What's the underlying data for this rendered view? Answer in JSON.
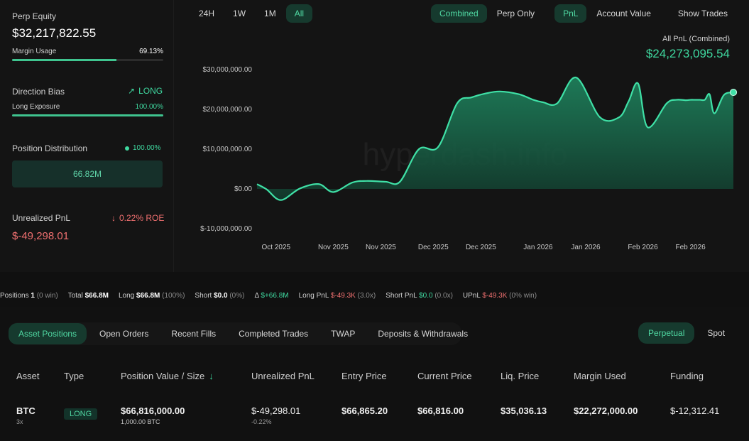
{
  "summary": {
    "perp_equity_label": "Perp Equity",
    "perp_equity_value": "$32,217,822.55",
    "margin_usage_label": "Margin Usage",
    "margin_usage_value": "69.13%",
    "margin_usage_fraction": 0.6913,
    "direction_bias_label": "Direction Bias",
    "direction_bias_value": "LONG",
    "long_exposure_label": "Long Exposure",
    "long_exposure_value": "100.00%",
    "long_exposure_fraction": 1.0,
    "position_distribution_label": "Position Distribution",
    "position_distribution_value": "100.00%",
    "position_distribution_box": "66.82M",
    "unrealized_pnl_label": "Unrealized PnL",
    "unrealized_roe": "0.22% ROE",
    "unrealized_pnl_value": "$-49,298.01"
  },
  "chart_controls": {
    "ranges": [
      "24H",
      "1W",
      "1M",
      "All"
    ],
    "active_range": "All",
    "modes": [
      "Combined",
      "Perp Only",
      "PnL",
      "Account Value",
      "Show Trades"
    ],
    "active_modes": [
      "Combined",
      "PnL"
    ]
  },
  "chart_header": {
    "caption": "All PnL (Combined)",
    "value": "$24,273,095.54",
    "watermark": "hyperdash.info"
  },
  "chart_data": {
    "type": "area",
    "y_ticks": [
      "$30,000,000.00",
      "$20,000,000.00",
      "$10,000,000.00",
      "$0.00",
      "$-10,000,000.00"
    ],
    "x_ticks": [
      "Oct 2025",
      "Nov 2025",
      "Nov 2025",
      "Dec 2025",
      "Dec 2025",
      "Jan 2026",
      "Jan 2026",
      "Feb 2026",
      "Feb 2026"
    ],
    "ylim": [
      -10000000,
      30000000
    ],
    "x": [
      0,
      0.02,
      0.05,
      0.09,
      0.13,
      0.16,
      0.2,
      0.23,
      0.27,
      0.3,
      0.34,
      0.38,
      0.42,
      0.45,
      0.48,
      0.51,
      0.55,
      0.58,
      0.6,
      0.63,
      0.67,
      0.72,
      0.76,
      0.78,
      0.8,
      0.82,
      0.86,
      0.88,
      0.9,
      0.91,
      0.92,
      0.93,
      0.94,
      0.95,
      0.96,
      0.98,
      1.0
    ],
    "values": [
      1200000,
      -100000,
      -2800000,
      100000,
      1200000,
      -800000,
      1600000,
      2000000,
      1800000,
      1800000,
      10000000,
      10500000,
      21500000,
      23000000,
      24000000,
      24500000,
      23800000,
      22400000,
      21800000,
      21500000,
      28000000,
      18000000,
      18000000,
      22000000,
      26500000,
      15500000,
      21500000,
      22400000,
      22300000,
      22400000,
      22400000,
      22400000,
      22400000,
      23800000,
      19000000,
      23600000,
      24273095
    ],
    "legend": "none"
  },
  "stats_strip": {
    "positions_label": "Positions",
    "positions_count": "1",
    "positions_win": "(0 win)",
    "total_label": "Total",
    "total_value": "$66.8M",
    "long_label": "Long",
    "long_value": "$66.8M",
    "long_pct": "(100%)",
    "short_label": "Short",
    "short_value": "$0.0",
    "short_pct": "(0%)",
    "delta_label": "Δ",
    "delta_value": "$+66.8M",
    "long_pnl_label": "Long PnL",
    "long_pnl_value": "$-49.3K",
    "long_pnl_ratio": "(3.0x)",
    "short_pnl_label": "Short PnL",
    "short_pnl_value": "$0.0",
    "short_pnl_ratio": "(0.0x)",
    "upnl_label": "UPnL",
    "upnl_value": "$-49.3K",
    "upnl_win": "(0% win)"
  },
  "tabs": [
    "Asset Positions",
    "Open Orders",
    "Recent Fills",
    "Completed Trades",
    "TWAP",
    "Deposits & Withdrawals"
  ],
  "right_tabs": [
    "Perpetual",
    "Spot"
  ],
  "table": {
    "headers": [
      "Asset",
      "Type",
      "Position Value / Size",
      "Unrealized PnL",
      "Entry Price",
      "Current Price",
      "Liq. Price",
      "Margin Used",
      "Funding"
    ],
    "sort_icon": "↓",
    "row": {
      "asset": "BTC",
      "leverage": "3x",
      "type": "LONG",
      "position_value": "$66,816,000.00",
      "position_size": "1,000.00 BTC",
      "unrealized_pnl": "$-49,298.01",
      "unrealized_pct": "-0.22%",
      "entry_price": "$66,865.20",
      "current_price": "$66,816.00",
      "liq_price": "$35,036.13",
      "margin_used": "$22,272,000.00",
      "funding": "$-12,312.41"
    }
  },
  "colors": {
    "accent": "#3fd9a0",
    "negative": "#f07070",
    "background": "#101010"
  }
}
